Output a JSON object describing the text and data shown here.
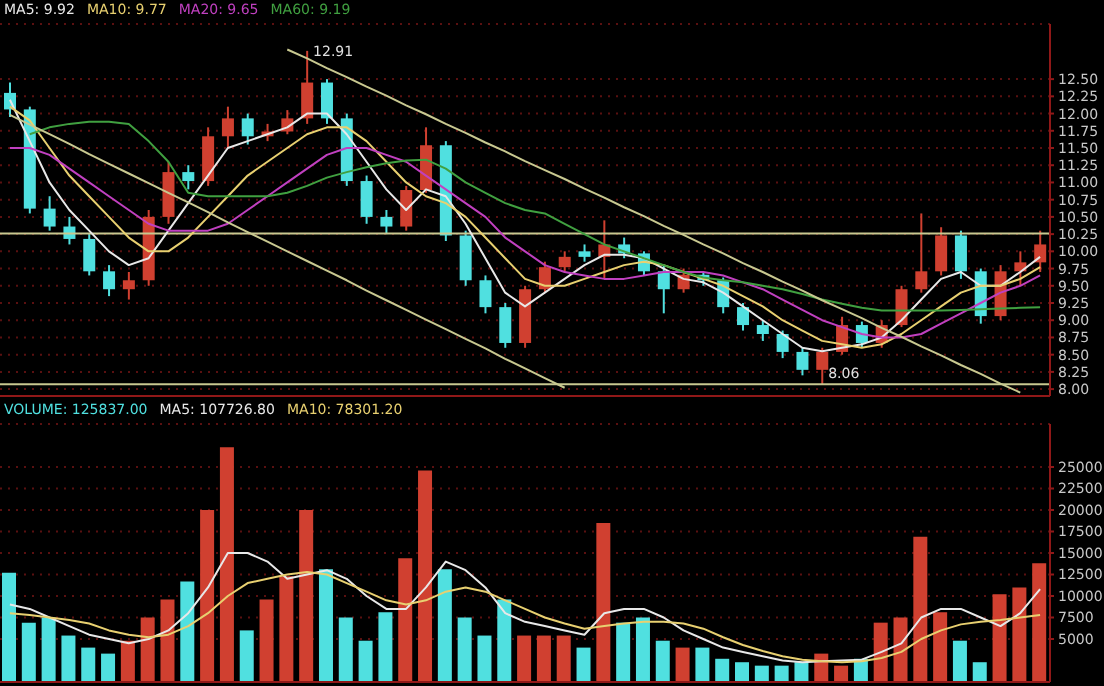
{
  "chart_data": [
    {
      "type": "candlestick",
      "categories": [
        null,
        null,
        null,
        null,
        null,
        null,
        null,
        null,
        null,
        null,
        null,
        null,
        null,
        null,
        null,
        null,
        null,
        null,
        null,
        null,
        null,
        null,
        null,
        null,
        null,
        null,
        null,
        null,
        null,
        null,
        null,
        null,
        null,
        null,
        null,
        null,
        null,
        null,
        null,
        null,
        null,
        null,
        null,
        null,
        null,
        null,
        null,
        null,
        null,
        null,
        null,
        null,
        null
      ],
      "ylim": [
        7.9,
        13.3
      ],
      "yticks": [
        {
          "value": 8,
          "label": "8.00"
        },
        8.25,
        {
          "value": 8.5,
          "label": "8.50"
        },
        8.75,
        {
          "value": 9,
          "label": "9.00"
        },
        9.25,
        {
          "value": 9.5,
          "label": "9.50"
        },
        9.75,
        {
          "value": 10,
          "label": "10.00"
        },
        10.25,
        {
          "value": 10.5,
          "label": "10.50"
        },
        10.75,
        {
          "value": 11,
          "label": "11.00"
        },
        11.25,
        {
          "value": 11.5,
          "label": "11.50"
        },
        11.75,
        {
          "value": 12,
          "label": "12.00"
        },
        12.25,
        {
          "value": 12.5,
          "label": "12.50"
        }
      ],
      "grid": "y",
      "tick_labels": "y",
      "ohlc": [
        [
          12.3,
          12.45,
          11.95,
          12.06
        ],
        [
          12.06,
          12.1,
          10.55,
          10.62
        ],
        [
          10.62,
          10.8,
          10.3,
          10.36
        ],
        [
          10.36,
          10.5,
          10.1,
          10.18
        ],
        [
          10.18,
          10.25,
          9.65,
          9.71
        ],
        [
          9.71,
          9.8,
          9.35,
          9.45
        ],
        [
          9.45,
          9.7,
          9.3,
          9.58
        ],
        [
          9.58,
          10.6,
          9.5,
          10.5
        ],
        [
          10.5,
          11.3,
          10.4,
          11.15
        ],
        [
          11.15,
          11.25,
          10.9,
          11.02
        ],
        [
          11.02,
          11.8,
          10.95,
          11.67
        ],
        [
          11.67,
          12.1,
          11.5,
          11.93
        ],
        [
          11.93,
          12.0,
          11.55,
          11.67
        ],
        [
          11.67,
          11.85,
          11.6,
          11.74
        ],
        [
          11.74,
          12.05,
          11.7,
          11.93
        ],
        [
          11.93,
          12.91,
          11.85,
          12.45
        ],
        [
          12.45,
          12.5,
          11.85,
          11.93
        ],
        [
          11.93,
          12.0,
          10.95,
          11.02
        ],
        [
          11.02,
          11.1,
          10.4,
          10.5
        ],
        [
          10.5,
          10.6,
          10.25,
          10.36
        ],
        [
          10.36,
          10.95,
          10.3,
          10.89
        ],
        [
          10.89,
          11.8,
          10.85,
          11.54
        ],
        [
          11.54,
          11.6,
          10.15,
          10.23
        ],
        [
          10.23,
          10.3,
          9.5,
          9.58
        ],
        [
          9.58,
          9.65,
          9.1,
          9.19
        ],
        [
          9.19,
          9.25,
          8.6,
          8.67
        ],
        [
          8.67,
          9.5,
          8.6,
          9.45
        ],
        [
          9.45,
          9.85,
          9.4,
          9.77
        ],
        [
          9.77,
          10.0,
          9.7,
          9.92
        ],
        [
          10.0,
          10.1,
          9.85,
          9.92
        ],
        [
          9.92,
          10.45,
          9.6,
          10.1
        ],
        [
          10.1,
          10.2,
          9.9,
          9.97
        ],
        [
          9.97,
          10.0,
          9.65,
          9.71
        ],
        [
          9.71,
          9.8,
          9.1,
          9.45
        ],
        [
          9.45,
          9.75,
          9.4,
          9.66
        ],
        [
          9.66,
          9.7,
          9.5,
          9.58
        ],
        [
          9.58,
          9.62,
          9.1,
          9.19
        ],
        [
          9.19,
          9.25,
          8.85,
          8.93
        ],
        [
          8.93,
          9.0,
          8.7,
          8.8
        ],
        [
          8.8,
          8.85,
          8.45,
          8.54
        ],
        [
          8.54,
          8.6,
          8.2,
          8.28
        ],
        [
          8.28,
          8.6,
          8.06,
          8.54
        ],
        [
          8.54,
          9.05,
          8.5,
          8.93
        ],
        [
          8.93,
          8.98,
          8.6,
          8.67
        ],
        [
          8.67,
          9.0,
          8.6,
          8.93
        ],
        [
          8.93,
          9.5,
          8.9,
          9.45
        ],
        [
          9.45,
          10.55,
          9.4,
          9.71
        ],
        [
          9.71,
          10.35,
          9.65,
          10.23
        ],
        [
          10.23,
          10.3,
          9.6,
          9.71
        ],
        [
          9.71,
          9.75,
          8.95,
          9.06
        ],
        [
          9.06,
          9.8,
          9.0,
          9.71
        ],
        [
          9.71,
          10.0,
          9.5,
          9.84
        ],
        [
          9.84,
          10.3,
          9.7,
          10.1
        ]
      ],
      "colors": [
        "#50e0e0",
        "#50e0e0",
        "#50e0e0",
        "#50e0e0",
        "#50e0e0",
        "#50e0e0",
        "#d04030",
        "#d04030",
        "#d04030",
        "#50e0e0",
        "#d04030",
        "#d04030",
        "#50e0e0",
        "#d04030",
        "#d04030",
        "#d04030",
        "#50e0e0",
        "#50e0e0",
        "#50e0e0",
        "#50e0e0",
        "#d04030",
        "#d04030",
        "#50e0e0",
        "#50e0e0",
        "#50e0e0",
        "#50e0e0",
        "#d04030",
        "#d04030",
        "#d04030",
        "#50e0e0",
        "#d04030",
        "#50e0e0",
        "#50e0e0",
        "#50e0e0",
        "#d04030",
        "#50e0e0",
        "#50e0e0",
        "#50e0e0",
        "#50e0e0",
        "#50e0e0",
        "#50e0e0",
        "#d04030",
        "#d04030",
        "#50e0e0",
        "#d04030",
        "#d04030",
        "#d04030",
        "#d04030",
        "#50e0e0",
        "#50e0e0",
        "#d04030",
        "#d04030",
        "#d04030"
      ],
      "series": [
        {
          "type": "line",
          "name": "MA5: 9.92",
          "color": "#e8e8e8",
          "values": [
            12.2,
            11.6,
            11.0,
            10.6,
            10.3,
            10.0,
            9.8,
            9.9,
            10.3,
            10.7,
            11.1,
            11.5,
            11.6,
            11.7,
            11.8,
            12.0,
            12.0,
            11.7,
            11.3,
            10.9,
            10.6,
            10.9,
            10.8,
            10.4,
            9.9,
            9.4,
            9.2,
            9.4,
            9.6,
            9.8,
            9.95,
            9.95,
            9.9,
            9.75,
            9.6,
            9.55,
            9.4,
            9.2,
            9.0,
            8.8,
            8.6,
            8.55,
            8.6,
            8.65,
            8.75,
            9.0,
            9.3,
            9.6,
            9.7,
            9.5,
            9.5,
            9.7,
            9.92
          ]
        },
        {
          "type": "line",
          "name": "MA10: 9.77",
          "color": "#e8d070",
          "values": [
            12.1,
            11.9,
            11.5,
            11.1,
            10.8,
            10.5,
            10.2,
            10.0,
            10.0,
            10.2,
            10.5,
            10.8,
            11.1,
            11.3,
            11.5,
            11.7,
            11.8,
            11.8,
            11.6,
            11.3,
            11.0,
            10.8,
            10.7,
            10.5,
            10.2,
            9.9,
            9.6,
            9.5,
            9.5,
            9.6,
            9.7,
            9.8,
            9.85,
            9.8,
            9.7,
            9.6,
            9.5,
            9.35,
            9.2,
            9.0,
            8.85,
            8.7,
            8.65,
            8.6,
            8.65,
            8.8,
            9.0,
            9.2,
            9.4,
            9.5,
            9.5,
            9.6,
            9.77
          ]
        },
        {
          "type": "line",
          "name": "MA20: 9.65",
          "color": "#c040c0",
          "values": [
            11.5,
            11.5,
            11.4,
            11.2,
            11.0,
            10.8,
            10.6,
            10.4,
            10.3,
            10.3,
            10.3,
            10.4,
            10.6,
            10.8,
            11.0,
            11.2,
            11.4,
            11.5,
            11.5,
            11.4,
            11.3,
            11.1,
            10.9,
            10.7,
            10.5,
            10.2,
            10.0,
            9.8,
            9.7,
            9.65,
            9.6,
            9.6,
            9.65,
            9.7,
            9.7,
            9.7,
            9.65,
            9.55,
            9.45,
            9.3,
            9.15,
            9.0,
            8.9,
            8.8,
            8.75,
            8.75,
            8.8,
            8.95,
            9.1,
            9.25,
            9.4,
            9.5,
            9.65
          ]
        },
        {
          "type": "line",
          "name": "MA60: 9.19",
          "color": "#40a040",
          "values": [
            null,
            11.7,
            11.8,
            11.85,
            11.88,
            11.88,
            11.85,
            11.6,
            11.3,
            10.85,
            10.8,
            10.8,
            10.8,
            10.8,
            10.85,
            10.95,
            11.07,
            11.15,
            11.22,
            11.28,
            11.32,
            11.33,
            11.2,
            11.0,
            10.85,
            10.7,
            10.6,
            10.55,
            10.4,
            10.25,
            10.1,
            10.0,
            9.9,
            9.8,
            9.7,
            9.62,
            9.58,
            9.55,
            9.5,
            9.45,
            9.38,
            9.3,
            9.24,
            9.18,
            9.14,
            9.14,
            9.14,
            9.14,
            9.15,
            9.16,
            9.17,
            9.18,
            9.19
          ]
        },
        {
          "type": "line",
          "color": "#c8c890",
          "values": [
            null,
            null,
            null,
            null,
            null,
            null,
            null,
            null,
            null,
            null,
            null,
            null,
            null,
            null,
            12.93,
            12.8,
            12.66,
            12.53,
            12.39,
            12.26,
            12.12,
            11.99,
            11.85,
            11.72,
            11.58,
            11.45,
            11.31,
            11.18,
            11.05,
            10.91,
            10.78,
            10.64,
            10.51,
            10.37,
            10.24,
            10.1,
            9.97,
            9.83,
            9.7,
            9.56,
            9.43,
            9.29,
            9.16,
            9.03,
            8.89,
            8.76,
            8.62,
            8.49,
            8.35,
            8.22,
            8.08,
            7.95,
            null
          ]
        },
        {
          "type": "line",
          "color": "#c8c890",
          "values": [
            11.98,
            11.84,
            11.7,
            11.56,
            11.41,
            11.27,
            11.13,
            10.99,
            10.85,
            10.71,
            10.57,
            10.42,
            10.28,
            10.14,
            10.0,
            9.86,
            9.72,
            9.58,
            9.43,
            9.29,
            9.15,
            9.01,
            8.87,
            8.73,
            8.59,
            8.44,
            8.3,
            8.16,
            8.02,
            null,
            null,
            null,
            null,
            null,
            null,
            null,
            null,
            null,
            null,
            null,
            null,
            null,
            null,
            null,
            null,
            null,
            null,
            null,
            null,
            null,
            null,
            null,
            null
          ]
        }
      ],
      "ref_lines": [
        {
          "axis": "y",
          "value": 10.26,
          "color": "#c8c890"
        },
        {
          "axis": "y",
          "value": 8.07,
          "color": "#c8c890"
        }
      ],
      "annotations": [
        "12.91",
        "8.06"
      ]
    },
    {
      "type": "bar",
      "categories": [
        null,
        null,
        null,
        null,
        null,
        null,
        null,
        null,
        null,
        null,
        null,
        null,
        null,
        null,
        null,
        null,
        null,
        null,
        null,
        null,
        null,
        null,
        null,
        null,
        null,
        null,
        null,
        null,
        null,
        null,
        null,
        null,
        null,
        null,
        null,
        null,
        null,
        null,
        null,
        null,
        null,
        null,
        null,
        null,
        null,
        null,
        null,
        null,
        null,
        null,
        null,
        null,
        null
      ],
      "ylim": [
        0,
        30000
      ],
      "yticks": [
        5000,
        7500,
        10000,
        12500,
        15000,
        17500,
        20000,
        22500,
        25000
      ],
      "grid": "y",
      "tick_labels": "y",
      "series": [
        {
          "type": "bar",
          "name": "VOLUME: 125837.00",
          "colors": [
            "#50e0e0",
            "#50e0e0",
            "#50e0e0",
            "#50e0e0",
            "#50e0e0",
            "#50e0e0",
            "#d04030",
            "#d04030",
            "#d04030",
            "#50e0e0",
            "#d04030",
            "#d04030",
            "#50e0e0",
            "#d04030",
            "#d04030",
            "#d04030",
            "#50e0e0",
            "#50e0e0",
            "#50e0e0",
            "#50e0e0",
            "#d04030",
            "#d04030",
            "#50e0e0",
            "#50e0e0",
            "#50e0e0",
            "#50e0e0",
            "#d04030",
            "#d04030",
            "#d04030",
            "#50e0e0",
            "#d04030",
            "#50e0e0",
            "#50e0e0",
            "#50e0e0",
            "#d04030",
            "#50e0e0",
            "#50e0e0",
            "#50e0e0",
            "#50e0e0",
            "#50e0e0",
            "#50e0e0",
            "#d04030",
            "#d04030",
            "#50e0e0",
            "#d04030",
            "#d04030",
            "#d04030",
            "#d04030",
            "#50e0e0",
            "#50e0e0",
            "#d04030",
            "#d04030",
            "#d04030"
          ],
          "values": [
            12700,
            6900,
            7500,
            5400,
            4000,
            3300,
            4800,
            7500,
            9600,
            11700,
            20000,
            27300,
            6000,
            9600,
            12300,
            20000,
            13100,
            7500,
            4800,
            8100,
            14400,
            24600,
            13100,
            7500,
            5400,
            9600,
            5400,
            5400,
            5400,
            4000,
            18500,
            6900,
            7500,
            4800,
            4000,
            4000,
            2700,
            2300,
            1900,
            1900,
            2300,
            3300,
            1900,
            2700,
            6900,
            7500,
            16900,
            8100,
            4800,
            2300,
            10200,
            11000,
            13800
          ]
        },
        {
          "type": "line",
          "name": "MA5: 107726.80",
          "color": "#e8e8e8",
          "values": [
            9000,
            8500,
            7500,
            6500,
            5500,
            5000,
            4500,
            5000,
            6000,
            8000,
            11000,
            15000,
            15000,
            14000,
            12000,
            12500,
            13000,
            12000,
            10000,
            8500,
            8500,
            11000,
            14000,
            13000,
            11000,
            8000,
            7000,
            6500,
            6000,
            5500,
            8000,
            8500,
            8500,
            7500,
            6000,
            5000,
            4000,
            3500,
            3000,
            2500,
            2300,
            2400,
            2500,
            2600,
            3500,
            4500,
            7500,
            8500,
            8500,
            7500,
            6500,
            8000,
            10800
          ]
        },
        {
          "type": "line",
          "name": "MA10: 78301.20",
          "color": "#e8d070",
          "values": [
            8000,
            7800,
            7500,
            7200,
            6800,
            6000,
            5500,
            5200,
            5500,
            6500,
            8000,
            10000,
            11500,
            12000,
            12500,
            12800,
            12500,
            11500,
            10500,
            9500,
            9000,
            9500,
            10500,
            11000,
            10500,
            9500,
            8500,
            7500,
            6800,
            6200,
            6500,
            6800,
            7000,
            7000,
            6800,
            6200,
            5200,
            4300,
            3600,
            3000,
            2600,
            2400,
            2300,
            2400,
            2800,
            3500,
            5000,
            6000,
            6700,
            7000,
            7200,
            7500,
            7800
          ]
        }
      ]
    }
  ]
}
